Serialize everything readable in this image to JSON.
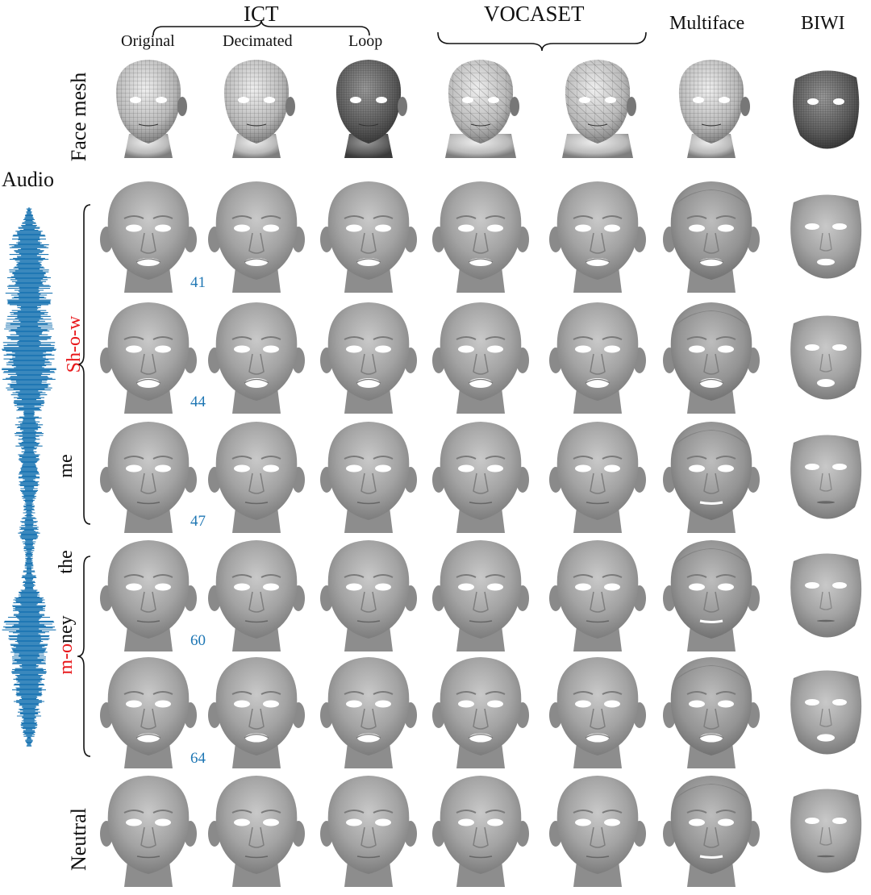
{
  "header": {
    "ict": {
      "label": "ICT",
      "variants": [
        "Original",
        "Decimated",
        "Loop"
      ]
    },
    "vocaset": {
      "label": "VOCASET"
    },
    "multiface": {
      "label": "Multiface"
    },
    "biwi": {
      "label": "BIWI"
    }
  },
  "row_labels": {
    "face_mesh": "Face mesh",
    "neutral": "Neutral",
    "audio": "Audio"
  },
  "words": [
    {
      "text": "Sh-o-w",
      "color": "#e8191c"
    },
    {
      "text": "me",
      "color": "#111111"
    },
    {
      "text": "the",
      "color": "#111111"
    },
    {
      "text": "m-oney",
      "parts": [
        {
          "text": "m-o",
          "color": "#e8191c"
        },
        {
          "text": "ney",
          "color": "#111111"
        }
      ]
    }
  ],
  "frames": [
    "41",
    "44",
    "47",
    "60",
    "64"
  ],
  "colors": {
    "waveform": "#1f77b4",
    "frame_number": "#1f77b4",
    "highlight_word": "#e8191c",
    "face_shade": "#a9a9a9",
    "mesh_face": "#dcdcdc"
  }
}
